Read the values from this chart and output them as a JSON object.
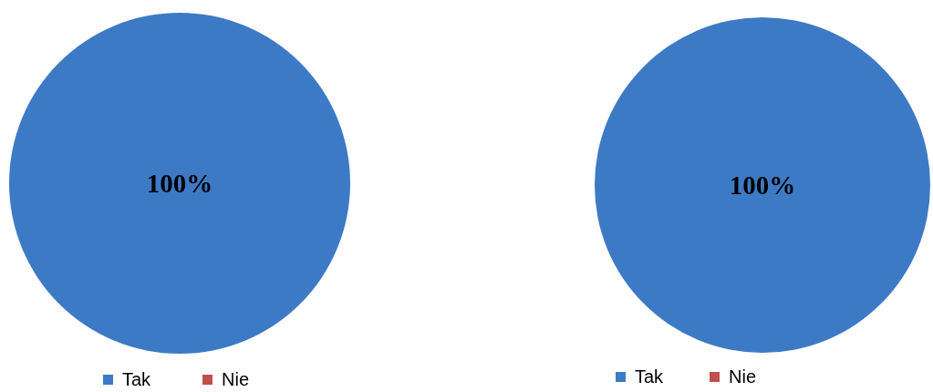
{
  "chart_data": [
    {
      "type": "pie",
      "categories": [
        "Tak",
        "Nie"
      ],
      "values": [
        100,
        0
      ],
      "colors": [
        "#3d7ac6",
        "#c0504d"
      ],
      "value_labels": [
        "100%",
        null
      ],
      "legend": "bottom"
    },
    {
      "type": "pie",
      "categories": [
        "Tak",
        "Nie"
      ],
      "values": [
        100,
        0
      ],
      "colors": [
        "#3d7ac6",
        "#c0504d"
      ],
      "value_labels": [
        "100%",
        null
      ],
      "legend": "bottom"
    }
  ]
}
